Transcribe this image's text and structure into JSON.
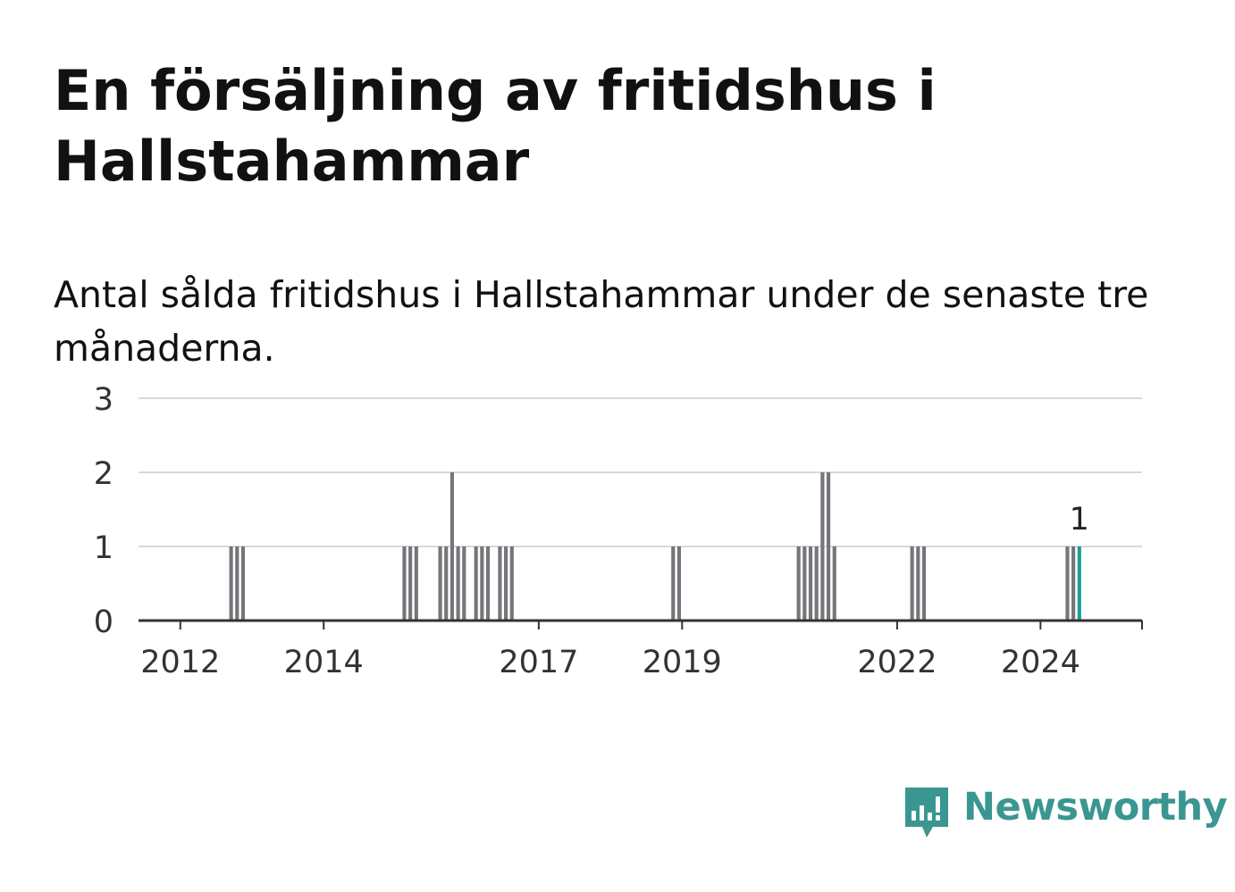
{
  "title": "En försäljning av fritidshus i Hallstahammar",
  "subtitle": "Antal sålda fritidshus i Hallstahammar under de senaste tre månaderna.",
  "brand": {
    "name": "Newsworthy",
    "color": "#3a9690",
    "icon": "newsworthy-logo-icon"
  },
  "colors": {
    "bar": "#76757a",
    "highlight": "#1a9e96",
    "grid": "#d9d9d9",
    "axis": "#333333"
  },
  "chart_data": {
    "type": "bar",
    "title": "En försäljning av fritidshus i Hallstahammar",
    "subtitle": "Antal sålda fritidshus i Hallstahammar under de senaste tre månaderna.",
    "xlabel": "",
    "ylabel": "",
    "ylim": [
      0,
      3
    ],
    "yticks": [
      "0",
      "1",
      "2",
      "3"
    ],
    "xlim": [
      "2011-06",
      "2025-06"
    ],
    "xticks": [
      {
        "label": "2012",
        "date": "2012-01"
      },
      {
        "label": "2014",
        "date": "2014-01"
      },
      {
        "label": "2017",
        "date": "2017-01"
      },
      {
        "label": "2019",
        "date": "2019-01"
      },
      {
        "label": "2022",
        "date": "2022-01"
      },
      {
        "label": "2024",
        "date": "2024-01"
      }
    ],
    "grid": true,
    "legend": "none",
    "series": [
      {
        "values": [
          {
            "x": "2012-09",
            "y": 1
          },
          {
            "x": "2012-10",
            "y": 1
          },
          {
            "x": "2012-11",
            "y": 1
          },
          {
            "x": "2015-02",
            "y": 1
          },
          {
            "x": "2015-03",
            "y": 1
          },
          {
            "x": "2015-04",
            "y": 1
          },
          {
            "x": "2015-08",
            "y": 1
          },
          {
            "x": "2015-09",
            "y": 1
          },
          {
            "x": "2015-10",
            "y": 2
          },
          {
            "x": "2015-11",
            "y": 1
          },
          {
            "x": "2015-12",
            "y": 1
          },
          {
            "x": "2016-02",
            "y": 1
          },
          {
            "x": "2016-03",
            "y": 1
          },
          {
            "x": "2016-04",
            "y": 1
          },
          {
            "x": "2016-06",
            "y": 1
          },
          {
            "x": "2016-07",
            "y": 1
          },
          {
            "x": "2016-08",
            "y": 1
          },
          {
            "x": "2018-11",
            "y": 1
          },
          {
            "x": "2018-12",
            "y": 1
          },
          {
            "x": "2020-08",
            "y": 1
          },
          {
            "x": "2020-09",
            "y": 1
          },
          {
            "x": "2020-10",
            "y": 1
          },
          {
            "x": "2020-11",
            "y": 1
          },
          {
            "x": "2020-12",
            "y": 2
          },
          {
            "x": "2021-01",
            "y": 2
          },
          {
            "x": "2021-02",
            "y": 1
          },
          {
            "x": "2022-03",
            "y": 1
          },
          {
            "x": "2022-04",
            "y": 1
          },
          {
            "x": "2022-05",
            "y": 1
          },
          {
            "x": "2024-05",
            "y": 1
          },
          {
            "x": "2024-06",
            "y": 1
          },
          {
            "x": "2024-07",
            "y": 1,
            "highlight": true,
            "label": "1"
          }
        ]
      }
    ]
  }
}
